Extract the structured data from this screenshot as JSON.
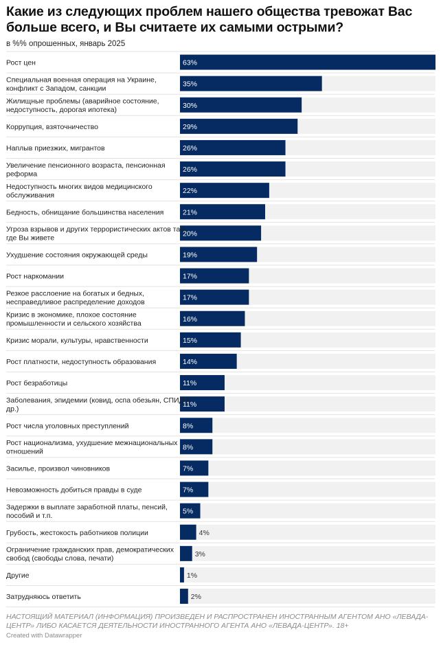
{
  "header": {
    "title": "Какие из следующих проблем нашего общества тревожат Вас больше всего, и Вы считаете их самыми острыми?",
    "subtitle": "в %% опрошенных, январь 2025"
  },
  "footer": {
    "note": "НАСТОЯЩИЙ МАТЕРИАЛ (ИНФОРМАЦИЯ) ПРОИЗВЕДЕН И РАСПРОСТРАНЕН ИНОСТРАННЫМ АГЕНТОМ АНО «ЛЕВАДА-ЦЕНТР» ЛИБО КАСАЕТСЯ ДЕЯТЕЛЬНОСТИ ИНОСТРАННОГО АГЕНТА АНО «ЛЕВАДА-ЦЕНТР». 18+",
    "credit": "Created with Datawrapper"
  },
  "colors": {
    "bar": "#062b63",
    "track": "#f1f1f1",
    "divider": "#e2e2e2",
    "label_inside": "#ffffff",
    "label_outside": "#333333"
  },
  "chart_data": {
    "type": "bar",
    "orientation": "horizontal",
    "xlim": [
      0,
      63
    ],
    "categories": [
      [
        "Рост цен"
      ],
      [
        "Специальная военная операция на Украине,",
        "конфликт с Западом, санкции"
      ],
      [
        "Жилищные проблемы (аварийное состояние,",
        "недоступность, дорогая ипотека)"
      ],
      [
        "Коррупция, взяточничество"
      ],
      [
        "Наплыв приезжих, мигрантов"
      ],
      [
        "Увеличение пенсионного возраста, пенсионная",
        "реформа"
      ],
      [
        "Недоступность многих видов медицинского",
        "обслуживания"
      ],
      [
        "Бедность, обнищание большинства населения"
      ],
      [
        "Угроза взрывов и других террористических актов там,",
        "где Вы живете"
      ],
      [
        "Ухудшение состояния окружающей среды"
      ],
      [
        "Рост наркомании"
      ],
      [
        "Резкое расслоение на богатых и бедных,",
        "несправедливое распределение доходов"
      ],
      [
        "Кризис в экономике, плохое состояние",
        "промышленности и сельского хозяйства"
      ],
      [
        "Кризис морали, культуры, нравственности"
      ],
      [
        "Рост платности, недоступность образования"
      ],
      [
        "Рост безработицы"
      ],
      [
        "Заболевания, эпидемии (ковид, оспа обезьян, СПИД и",
        "др.)"
      ],
      [
        "Рост числа уголовных преступлений"
      ],
      [
        "Рост национализма, ухудшение межнациональных",
        "отношений"
      ],
      [
        "Засилье, произвол чиновников"
      ],
      [
        "Невозможность добиться правды в суде"
      ],
      [
        "Задержки в выплате заработной платы, пенсий,",
        "пособий и т.п."
      ],
      [
        "Грубость, жестокость работников полиции"
      ],
      [
        "Ограничение гражданских прав, демократических",
        "свобод (свободы слова, печати)"
      ],
      [
        "Другие"
      ],
      [
        "Затрудняюсь ответить"
      ]
    ],
    "values": [
      63,
      35,
      30,
      29,
      26,
      26,
      22,
      21,
      20,
      19,
      17,
      17,
      16,
      15,
      14,
      11,
      11,
      8,
      8,
      7,
      7,
      5,
      4,
      3,
      1,
      2
    ],
    "value_labels": [
      "63%",
      "35%",
      "30%",
      "29%",
      "26%",
      "26%",
      "22%",
      "21%",
      "20%",
      "19%",
      "17%",
      "17%",
      "16%",
      "15%",
      "14%",
      "11%",
      "11%",
      "8%",
      "8%",
      "7%",
      "7%",
      "5%",
      "4%",
      "3%",
      "1%",
      "2%"
    ]
  }
}
